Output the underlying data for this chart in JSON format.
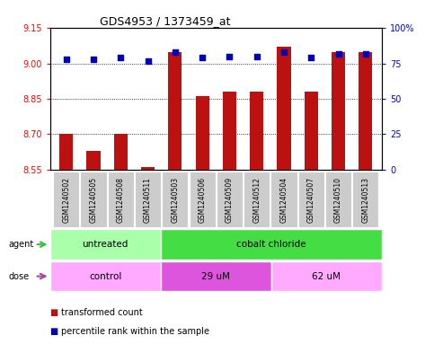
{
  "title": "GDS4953 / 1373459_at",
  "samples": [
    "GSM1240502",
    "GSM1240505",
    "GSM1240508",
    "GSM1240511",
    "GSM1240503",
    "GSM1240506",
    "GSM1240509",
    "GSM1240512",
    "GSM1240504",
    "GSM1240507",
    "GSM1240510",
    "GSM1240513"
  ],
  "transformed_counts": [
    8.7,
    8.63,
    8.7,
    8.56,
    9.05,
    8.86,
    8.88,
    8.88,
    9.07,
    8.88,
    9.05,
    9.05
  ],
  "percentile_ranks": [
    78,
    78,
    79,
    77,
    83,
    79,
    80,
    80,
    83,
    79,
    82,
    82
  ],
  "ylim_left": [
    8.55,
    9.15
  ],
  "ylim_right": [
    0,
    100
  ],
  "yticks_left": [
    8.55,
    8.7,
    8.85,
    9.0,
    9.15
  ],
  "yticks_right": [
    0,
    25,
    50,
    75,
    100
  ],
  "yticklabels_right": [
    "0",
    "25",
    "50",
    "75",
    "100%"
  ],
  "bar_color": "#bb1111",
  "dot_color": "#0000bb",
  "bar_bottom": 8.55,
  "agent_groups": [
    {
      "label": "untreated",
      "start": 0,
      "end": 4,
      "color": "#aaffaa"
    },
    {
      "label": "cobalt chloride",
      "start": 4,
      "end": 12,
      "color": "#44dd44"
    }
  ],
  "dose_groups": [
    {
      "label": "control",
      "start": 0,
      "end": 4,
      "color": "#ffaaff"
    },
    {
      "label": "29 uM",
      "start": 4,
      "end": 8,
      "color": "#dd55dd"
    },
    {
      "label": "62 uM",
      "start": 8,
      "end": 12,
      "color": "#ffaaff"
    }
  ],
  "legend_items": [
    {
      "label": "transformed count",
      "color": "#bb1111"
    },
    {
      "label": "percentile rank within the sample",
      "color": "#0000bb"
    }
  ],
  "grid_color": "black",
  "grid_style": "dotted",
  "sample_box_color": "#cccccc",
  "agent_arrow_color": "#44bb44",
  "dose_arrow_color": "#aa44aa"
}
